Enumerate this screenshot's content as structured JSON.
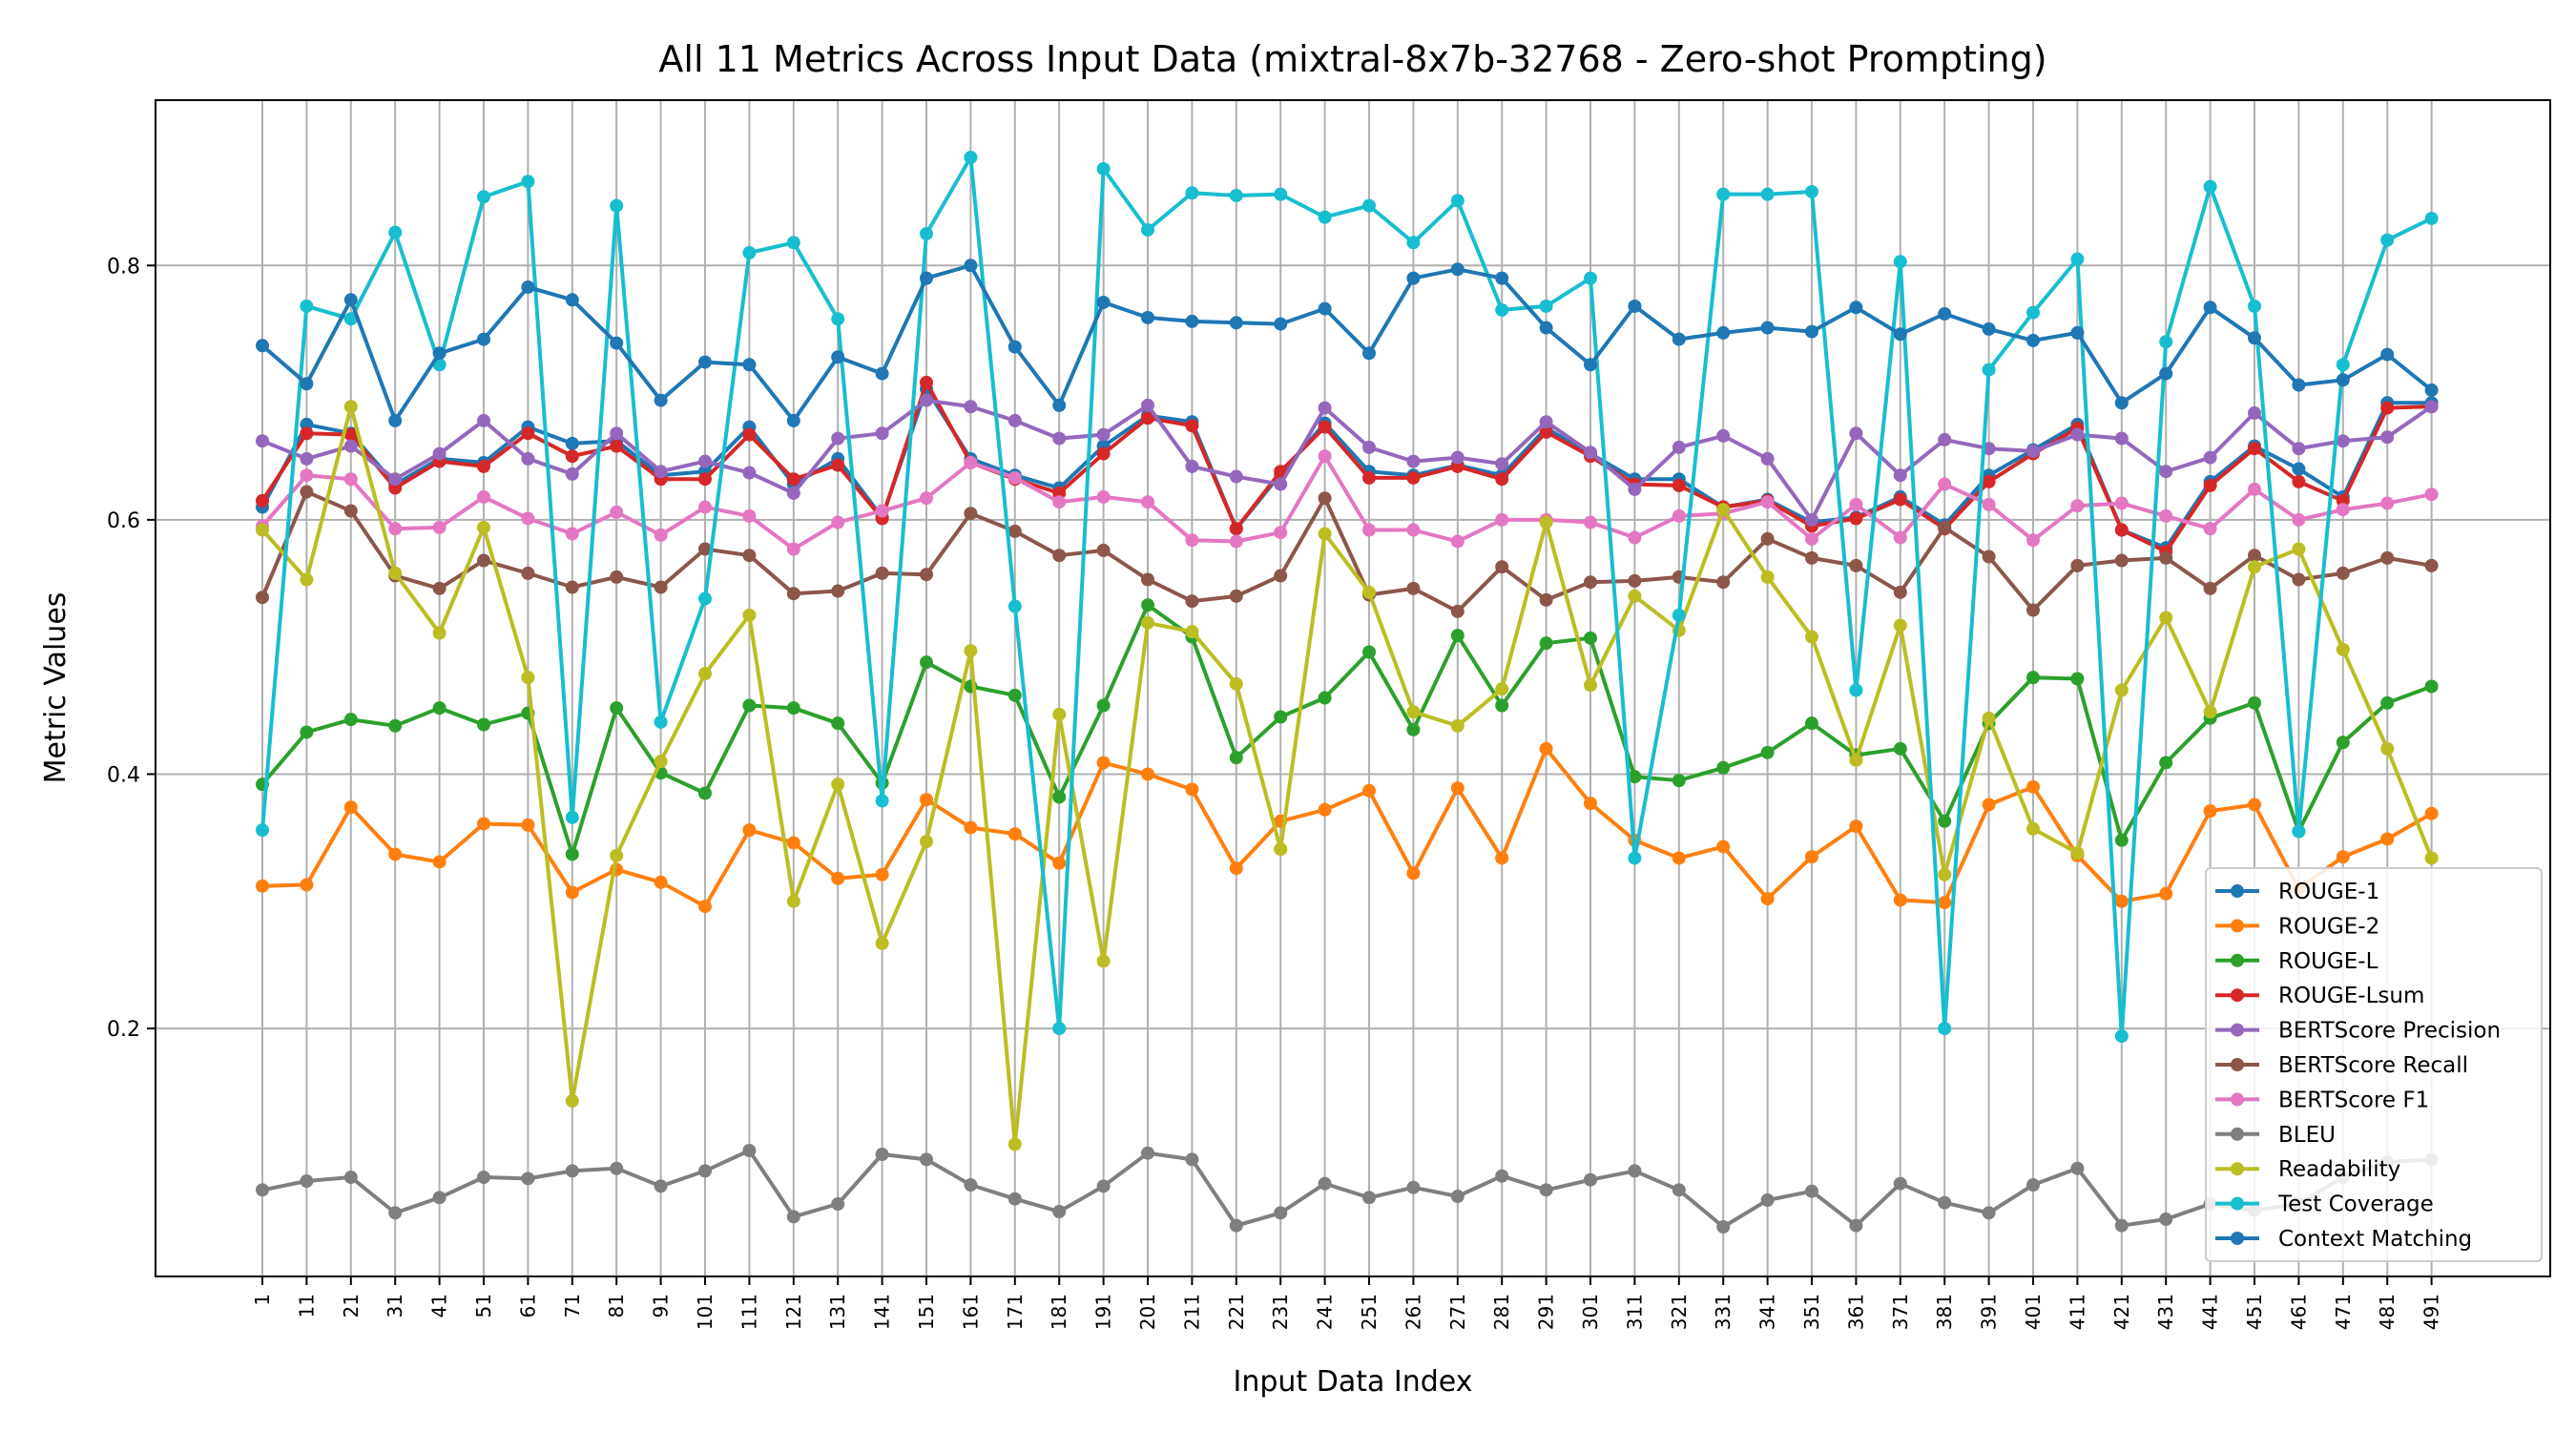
{
  "chart_data": {
    "type": "line",
    "title": "All 11 Metrics Across Input Data (mixtral-8x7b-32768 - Zero-shot Prompting)",
    "xlabel": "Input Data Index",
    "ylabel": "Metric Values",
    "ylim": [
      0.005,
      0.93
    ],
    "yticks": [
      0.2,
      0.4,
      0.6,
      0.8
    ],
    "ytick_labels": [
      "0.2",
      "0.4",
      "0.6",
      "0.8"
    ],
    "grid": true,
    "legend_position": "lower-right",
    "x": [
      "1",
      "11",
      "21",
      "31",
      "41",
      "51",
      "61",
      "71",
      "81",
      "91",
      "101",
      "111",
      "121",
      "131",
      "141",
      "151",
      "161",
      "171",
      "181",
      "191",
      "201",
      "211",
      "221",
      "231",
      "241",
      "251",
      "261",
      "271",
      "281",
      "291",
      "301",
      "311",
      "321",
      "331",
      "341",
      "351",
      "361",
      "371",
      "381",
      "391",
      "401",
      "411",
      "421",
      "431",
      "441",
      "451",
      "461",
      "471",
      "481",
      "491"
    ],
    "series": [
      {
        "name": "ROUGE-1",
        "color": "#1f77b4",
        "values": [
          0.61,
          0.675,
          0.668,
          0.628,
          0.648,
          0.645,
          0.673,
          0.66,
          0.662,
          0.635,
          0.638,
          0.673,
          0.628,
          0.648,
          0.602,
          0.703,
          0.648,
          0.635,
          0.625,
          0.658,
          0.682,
          0.677,
          0.593,
          0.636,
          0.676,
          0.638,
          0.635,
          0.643,
          0.635,
          0.672,
          0.652,
          0.632,
          0.632,
          0.61,
          0.616,
          0.598,
          0.602,
          0.618,
          0.596,
          0.635,
          0.655,
          0.675,
          0.592,
          0.578,
          0.63,
          0.658,
          0.64,
          0.618,
          0.692,
          0.692
        ]
      },
      {
        "name": "ROUGE-2",
        "color": "#ff7f0e",
        "values": [
          0.312,
          0.313,
          0.374,
          0.337,
          0.331,
          0.361,
          0.36,
          0.307,
          0.325,
          0.315,
          0.296,
          0.356,
          0.346,
          0.318,
          0.321,
          0.38,
          0.358,
          0.353,
          0.33,
          0.409,
          0.4,
          0.388,
          0.326,
          0.363,
          0.372,
          0.387,
          0.322,
          0.389,
          0.334,
          0.42,
          0.377,
          0.348,
          0.334,
          0.343,
          0.302,
          0.335,
          0.359,
          0.301,
          0.299,
          0.376,
          0.39,
          0.336,
          0.3,
          0.306,
          0.371,
          0.376,
          0.31,
          0.335,
          0.349,
          0.369
        ]
      },
      {
        "name": "ROUGE-L",
        "color": "#2ca02c",
        "values": [
          0.392,
          0.433,
          0.443,
          0.438,
          0.452,
          0.439,
          0.448,
          0.337,
          0.452,
          0.401,
          0.385,
          0.454,
          0.452,
          0.44,
          0.393,
          0.488,
          0.469,
          0.462,
          0.382,
          0.454,
          0.533,
          0.508,
          0.413,
          0.445,
          0.46,
          0.496,
          0.435,
          0.509,
          0.454,
          0.503,
          0.507,
          0.398,
          0.395,
          0.405,
          0.417,
          0.44,
          0.415,
          0.42,
          0.363,
          0.44,
          0.476,
          0.475,
          0.348,
          0.409,
          0.444,
          0.456,
          0.355,
          0.425,
          0.456,
          0.469
        ]
      },
      {
        "name": "ROUGE-Lsum",
        "color": "#d62728",
        "values": [
          0.615,
          0.668,
          0.667,
          0.625,
          0.646,
          0.642,
          0.668,
          0.65,
          0.658,
          0.632,
          0.632,
          0.667,
          0.632,
          0.643,
          0.601,
          0.708,
          0.645,
          0.632,
          0.621,
          0.652,
          0.68,
          0.674,
          0.593,
          0.638,
          0.673,
          0.633,
          0.633,
          0.642,
          0.632,
          0.669,
          0.65,
          0.628,
          0.627,
          0.61,
          0.615,
          0.595,
          0.601,
          0.616,
          0.593,
          0.63,
          0.652,
          0.672,
          0.592,
          0.575,
          0.627,
          0.656,
          0.63,
          0.615,
          0.688,
          0.689
        ]
      },
      {
        "name": "BERTScore Precision",
        "color": "#9467bd",
        "values": [
          0.662,
          0.648,
          0.658,
          0.632,
          0.652,
          0.678,
          0.648,
          0.636,
          0.668,
          0.638,
          0.646,
          0.637,
          0.621,
          0.664,
          0.668,
          0.694,
          0.689,
          0.678,
          0.664,
          0.667,
          0.69,
          0.642,
          0.634,
          0.628,
          0.688,
          0.657,
          0.646,
          0.649,
          0.644,
          0.677,
          0.653,
          0.624,
          0.657,
          0.666,
          0.648,
          0.6,
          0.668,
          0.635,
          0.663,
          0.656,
          0.654,
          0.667,
          0.664,
          0.638,
          0.649,
          0.684,
          0.656,
          0.662,
          0.665,
          0.689
        ]
      },
      {
        "name": "BERTScore Recall",
        "color": "#8c564b",
        "values": [
          0.539,
          0.622,
          0.607,
          0.556,
          0.546,
          0.568,
          0.558,
          0.547,
          0.555,
          0.547,
          0.577,
          0.572,
          0.542,
          0.544,
          0.558,
          0.557,
          0.605,
          0.591,
          0.572,
          0.576,
          0.553,
          0.536,
          0.54,
          0.556,
          0.617,
          0.541,
          0.546,
          0.528,
          0.563,
          0.537,
          0.551,
          0.552,
          0.555,
          0.551,
          0.585,
          0.57,
          0.564,
          0.543,
          0.594,
          0.571,
          0.529,
          0.564,
          0.568,
          0.57,
          0.546,
          0.572,
          0.553,
          0.558,
          0.57,
          0.564
        ]
      },
      {
        "name": "BERTScore F1",
        "color": "#e377c2",
        "values": [
          0.595,
          0.635,
          0.632,
          0.593,
          0.594,
          0.618,
          0.601,
          0.589,
          0.606,
          0.588,
          0.61,
          0.603,
          0.577,
          0.598,
          0.607,
          0.617,
          0.645,
          0.633,
          0.614,
          0.618,
          0.614,
          0.584,
          0.583,
          0.59,
          0.65,
          0.592,
          0.592,
          0.583,
          0.6,
          0.6,
          0.598,
          0.586,
          0.603,
          0.605,
          0.614,
          0.585,
          0.612,
          0.586,
          0.628,
          0.612,
          0.584,
          0.611,
          0.613,
          0.603,
          0.593,
          0.624,
          0.6,
          0.608,
          0.613,
          0.62
        ]
      },
      {
        "name": "BLEU",
        "color": "#7f7f7f",
        "values": [
          0.073,
          0.08,
          0.083,
          0.055,
          0.067,
          0.083,
          0.082,
          0.088,
          0.09,
          0.076,
          0.088,
          0.104,
          0.052,
          0.062,
          0.101,
          0.097,
          0.077,
          0.066,
          0.056,
          0.076,
          0.102,
          0.097,
          0.045,
          0.055,
          0.078,
          0.067,
          0.075,
          0.068,
          0.084,
          0.073,
          0.081,
          0.088,
          0.073,
          0.044,
          0.065,
          0.072,
          0.045,
          0.078,
          0.063,
          0.055,
          0.077,
          0.09,
          0.045,
          0.05,
          0.062,
          0.057,
          0.062,
          0.083,
          0.095,
          0.097
        ]
      },
      {
        "name": "Readability",
        "color": "#bcbd22",
        "values": [
          0.592,
          0.553,
          0.689,
          0.558,
          0.511,
          0.594,
          0.476,
          0.143,
          0.336,
          0.41,
          0.479,
          0.525,
          0.3,
          0.392,
          0.267,
          0.347,
          0.497,
          0.109,
          0.447,
          0.253,
          0.519,
          0.512,
          0.471,
          0.341,
          0.589,
          0.543,
          0.449,
          0.438,
          0.467,
          0.598,
          0.47,
          0.54,
          0.513,
          0.608,
          0.555,
          0.508,
          0.411,
          0.517,
          0.321,
          0.444,
          0.357,
          0.338,
          0.466,
          0.523,
          0.449,
          0.563,
          0.577,
          0.498,
          0.42,
          0.334
        ]
      },
      {
        "name": "Test Coverage",
        "color": "#17becf",
        "values": [
          0.356,
          0.768,
          0.758,
          0.826,
          0.722,
          0.854,
          0.866,
          0.366,
          0.847,
          0.441,
          0.538,
          0.81,
          0.818,
          0.758,
          0.379,
          0.825,
          0.885,
          0.532,
          0.2,
          0.876,
          0.828,
          0.857,
          0.855,
          0.856,
          0.838,
          0.847,
          0.818,
          0.851,
          0.765,
          0.768,
          0.79,
          0.334,
          0.525,
          0.856,
          0.856,
          0.858,
          0.466,
          0.803,
          0.2,
          0.718,
          0.763,
          0.805,
          0.194,
          0.74,
          0.862,
          0.768,
          0.355,
          0.722,
          0.82,
          0.837
        ]
      },
      {
        "name": "Context Matching",
        "color": "#1f77b4",
        "values": [
          0.737,
          0.707,
          0.773,
          0.678,
          0.731,
          0.742,
          0.783,
          0.773,
          0.739,
          0.694,
          0.724,
          0.722,
          0.678,
          0.728,
          0.715,
          0.79,
          0.8,
          0.736,
          0.69,
          0.771,
          0.759,
          0.756,
          0.755,
          0.754,
          0.766,
          0.731,
          0.79,
          0.797,
          0.79,
          0.751,
          0.722,
          0.768,
          0.742,
          0.747,
          0.751,
          0.748,
          0.767,
          0.746,
          0.762,
          0.75,
          0.741,
          0.747,
          0.692,
          0.715,
          0.767,
          0.743,
          0.706,
          0.71,
          0.73,
          0.702
        ]
      }
    ]
  }
}
